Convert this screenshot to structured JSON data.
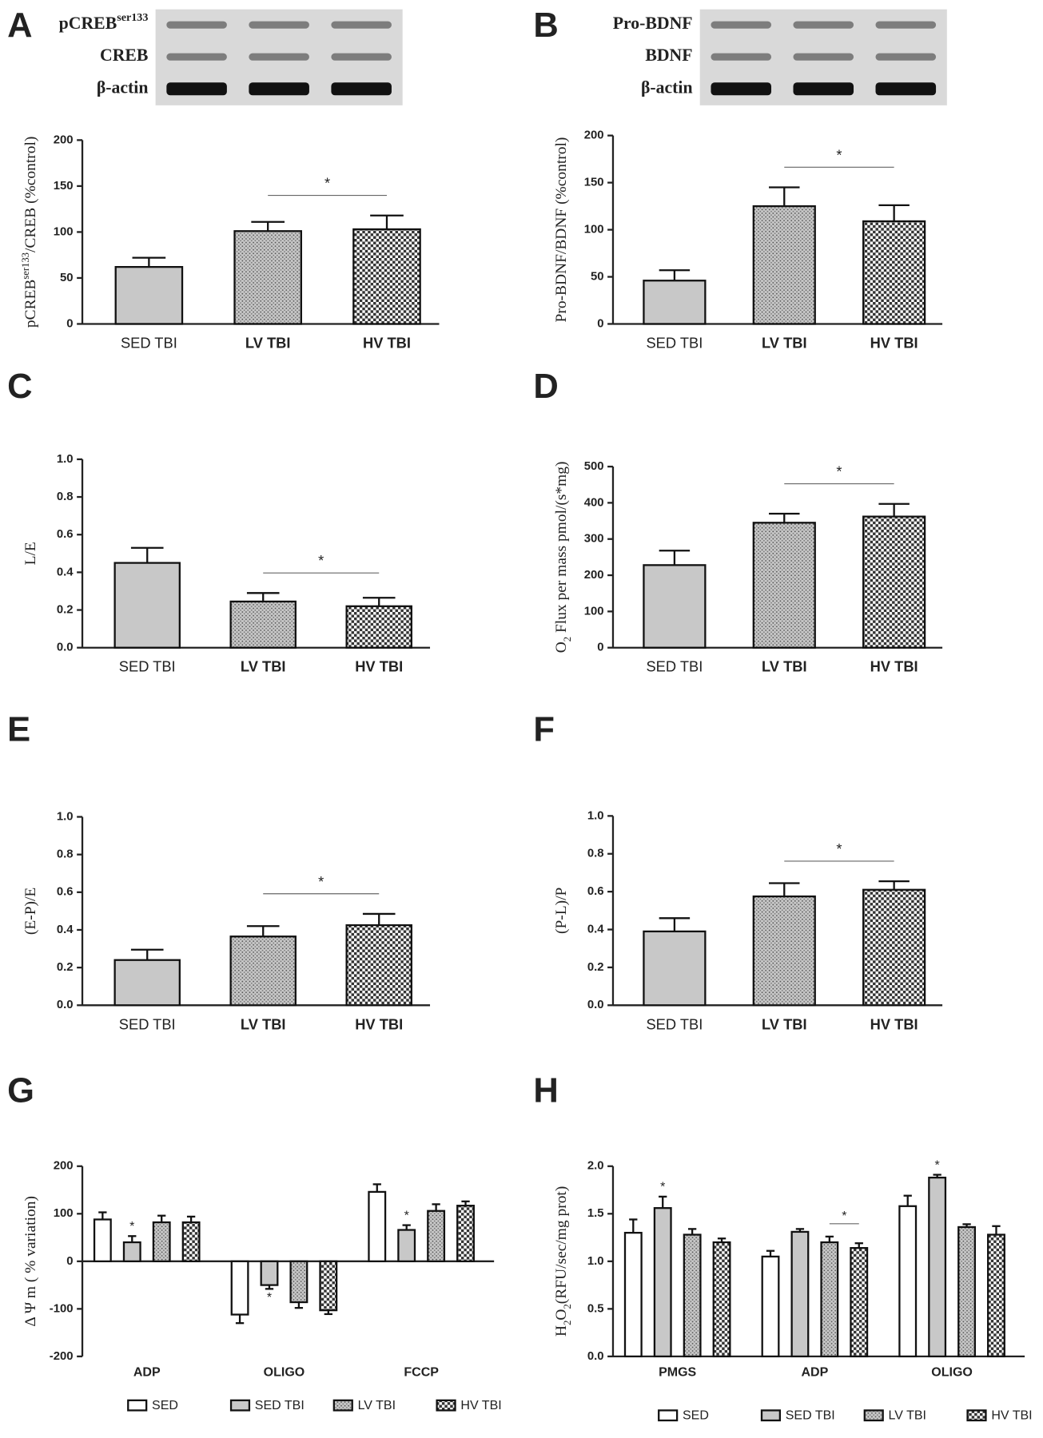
{
  "chart_data": [
    {
      "panel": "A",
      "type": "bar",
      "blot_labels": [
        [
          {
            "t": "pCREB"
          },
          {
            "t": "ser133",
            "sup": true
          }
        ],
        [
          {
            "t": "CREB"
          }
        ],
        [
          {
            "t": "β-actin"
          }
        ]
      ],
      "ylabel": [
        {
          "t": "pCREB"
        },
        {
          "t": "ser133",
          "sup": true
        },
        {
          "t": "/CREB  (%control)"
        }
      ],
      "categories": [
        "SED TBI",
        "LV TBI",
        "HV TBI"
      ],
      "values": [
        62,
        101,
        103
      ],
      "errors": [
        10,
        10,
        15
      ],
      "colors": [
        "#c8c8c8",
        "#c8c8c8",
        "#333333"
      ],
      "bar_styles": [
        "solid",
        "dotted",
        "checkered"
      ],
      "ylim": [
        0,
        200
      ],
      "yticks": [
        0,
        50,
        100,
        150,
        200
      ],
      "significance": [
        {
          "label": "*",
          "between": [
            1,
            2
          ]
        }
      ]
    },
    {
      "panel": "B",
      "type": "bar",
      "blot_labels": [
        [
          {
            "t": "Pro-BDNF"
          }
        ],
        [
          {
            "t": "BDNF"
          }
        ],
        [
          {
            "t": "β-actin"
          }
        ]
      ],
      "ylabel": [
        {
          "t": "Pro-BDNF/BDNF (%control)"
        }
      ],
      "categories": [
        "SED TBI",
        "LV TBI",
        "HV TBI"
      ],
      "values": [
        46,
        125,
        109
      ],
      "errors": [
        11,
        20,
        17
      ],
      "colors": [
        "#c8c8c8",
        "#c8c8c8",
        "#333333"
      ],
      "bar_styles": [
        "solid",
        "dotted",
        "checkered"
      ],
      "ylim": [
        0,
        200
      ],
      "yticks": [
        0,
        50,
        100,
        150,
        200
      ],
      "significance": [
        {
          "label": "*",
          "between": [
            1,
            2
          ]
        }
      ]
    },
    {
      "panel": "C",
      "type": "bar",
      "ylabel": [
        {
          "t": "L/E"
        }
      ],
      "categories": [
        "SED TBI",
        "LV TBI",
        "HV TBI"
      ],
      "values": [
        0.45,
        0.245,
        0.22
      ],
      "errors": [
        0.08,
        0.045,
        0.045
      ],
      "colors": [
        "#c8c8c8",
        "#c8c8c8",
        "#333333"
      ],
      "bar_styles": [
        "solid",
        "dotted",
        "checkered"
      ],
      "ylim": [
        0,
        1
      ],
      "yticks": [
        {
          "value": 0,
          "label": "0.0"
        },
        0.2,
        0.4,
        0.6,
        0.8,
        {
          "value": 1,
          "label": "1.0"
        }
      ],
      "significance": [
        {
          "label": "*",
          "between": [
            1,
            2
          ]
        }
      ]
    },
    {
      "panel": "D",
      "type": "bar",
      "ylabel": [
        {
          "t": "O"
        },
        {
          "t": "2",
          "sub": true
        },
        {
          "t": " Flux per mass pmol/(s*mg)"
        }
      ],
      "categories": [
        "SED TBI",
        "LV TBI",
        "HV TBI"
      ],
      "values": [
        228,
        345,
        362
      ],
      "errors": [
        40,
        25,
        35
      ],
      "colors": [
        "#c8c8c8",
        "#c8c8c8",
        "#333333"
      ],
      "bar_styles": [
        "solid",
        "dotted",
        "checkered"
      ],
      "ylim": [
        0,
        500
      ],
      "yticks": [
        0,
        100,
        200,
        300,
        400,
        500
      ],
      "significance": [
        {
          "label": "*",
          "between": [
            1,
            2
          ]
        }
      ]
    },
    {
      "panel": "E",
      "type": "bar",
      "ylabel": [
        {
          "t": "(E-P)/E"
        }
      ],
      "categories": [
        "SED TBI",
        "LV TBI",
        "HV TBI"
      ],
      "values": [
        0.24,
        0.365,
        0.425
      ],
      "errors": [
        0.055,
        0.055,
        0.06
      ],
      "colors": [
        "#c8c8c8",
        "#c8c8c8",
        "#333333"
      ],
      "bar_styles": [
        "solid",
        "dotted",
        "checkered"
      ],
      "ylim": [
        0,
        1
      ],
      "yticks": [
        {
          "value": 0,
          "label": "0.0"
        },
        0.2,
        0.4,
        0.6,
        0.8,
        {
          "value": 1,
          "label": "1.0"
        }
      ],
      "significance": [
        {
          "label": "*",
          "between": [
            1,
            2
          ]
        }
      ]
    },
    {
      "panel": "F",
      "type": "bar",
      "ylabel": [
        {
          "t": "(P-L)/P"
        }
      ],
      "categories": [
        "SED TBI",
        "LV TBI",
        "HV TBI"
      ],
      "values": [
        0.39,
        0.575,
        0.61
      ],
      "errors": [
        0.07,
        0.07,
        0.045
      ],
      "colors": [
        "#c8c8c8",
        "#c8c8c8",
        "#333333"
      ],
      "bar_styles": [
        "solid",
        "dotted",
        "checkered"
      ],
      "ylim": [
        0,
        1
      ],
      "yticks": [
        {
          "value": 0,
          "label": "0.0"
        },
        0.2,
        0.4,
        0.6,
        0.8,
        {
          "value": 1,
          "label": "1.0"
        }
      ],
      "significance": [
        {
          "label": "*",
          "between": [
            1,
            2
          ]
        }
      ]
    },
    {
      "panel": "G",
      "type": "grouped_bar",
      "ylabel": [
        {
          "t": "Δ Ψ m ( % variation)"
        }
      ],
      "categories": [
        "ADP",
        "OLIGO",
        "FCCP"
      ],
      "series": [
        {
          "name": "SED",
          "color": "#ffffff",
          "style": "solid",
          "values": [
            88,
            -112,
            146
          ],
          "errors": [
            15,
            18,
            16
          ]
        },
        {
          "name": "SED TBI",
          "color": "#c8c8c8",
          "style": "solid",
          "values": [
            40,
            -50,
            66
          ],
          "errors": [
            13,
            8,
            10
          ]
        },
        {
          "name": "LV TBI",
          "color": "#c8c8c8",
          "style": "dotted",
          "values": [
            82,
            -86,
            106
          ],
          "errors": [
            14,
            12,
            14
          ]
        },
        {
          "name": "HV TBI",
          "color": "#333333",
          "style": "checkered",
          "values": [
            82,
            -103,
            117
          ],
          "errors": [
            12,
            8,
            9
          ]
        }
      ],
      "ylim": [
        -200,
        200
      ],
      "yticks": [
        -200,
        -100,
        0,
        100,
        200
      ],
      "significance": [
        {
          "label": "*",
          "series": 1,
          "category": 0
        },
        {
          "label": "*",
          "series": 1,
          "category": 1
        },
        {
          "label": "*",
          "series": 1,
          "category": 2
        }
      ]
    },
    {
      "panel": "H",
      "type": "grouped_bar",
      "ylabel": [
        {
          "t": "H"
        },
        {
          "t": "2",
          "sub": true
        },
        {
          "t": "O"
        },
        {
          "t": "2",
          "sub": true
        },
        {
          "t": "(RFU/sec/mg prot)"
        }
      ],
      "categories": [
        "PMGS",
        "ADP",
        "OLIGO"
      ],
      "series": [
        {
          "name": "SED",
          "color": "#ffffff",
          "style": "solid",
          "values": [
            1.3,
            1.05,
            1.58
          ],
          "errors": [
            0.14,
            0.06,
            0.11
          ]
        },
        {
          "name": "SED TBI",
          "color": "#c8c8c8",
          "style": "solid",
          "values": [
            1.56,
            1.31,
            1.88
          ],
          "errors": [
            0.12,
            0.03,
            0.03
          ]
        },
        {
          "name": "LV TBI",
          "color": "#c8c8c8",
          "style": "dotted",
          "values": [
            1.28,
            1.2,
            1.36
          ],
          "errors": [
            0.06,
            0.06,
            0.03
          ]
        },
        {
          "name": "HV TBI",
          "color": "#333333",
          "style": "checkered",
          "values": [
            1.2,
            1.14,
            1.28
          ],
          "errors": [
            0.04,
            0.05,
            0.09
          ]
        }
      ],
      "ylim": [
        0,
        2
      ],
      "yticks": [
        {
          "value": 0,
          "label": "0.0"
        },
        0.5,
        {
          "value": 1,
          "label": "1.0"
        },
        1.5,
        {
          "value": 2,
          "label": "2.0"
        }
      ],
      "significance": [
        {
          "label": "*",
          "series": 1,
          "category": 0
        },
        {
          "label": "*",
          "category": 1,
          "between": [
            2,
            3
          ]
        },
        {
          "label": "*",
          "series": 1,
          "category": 2
        }
      ]
    }
  ]
}
